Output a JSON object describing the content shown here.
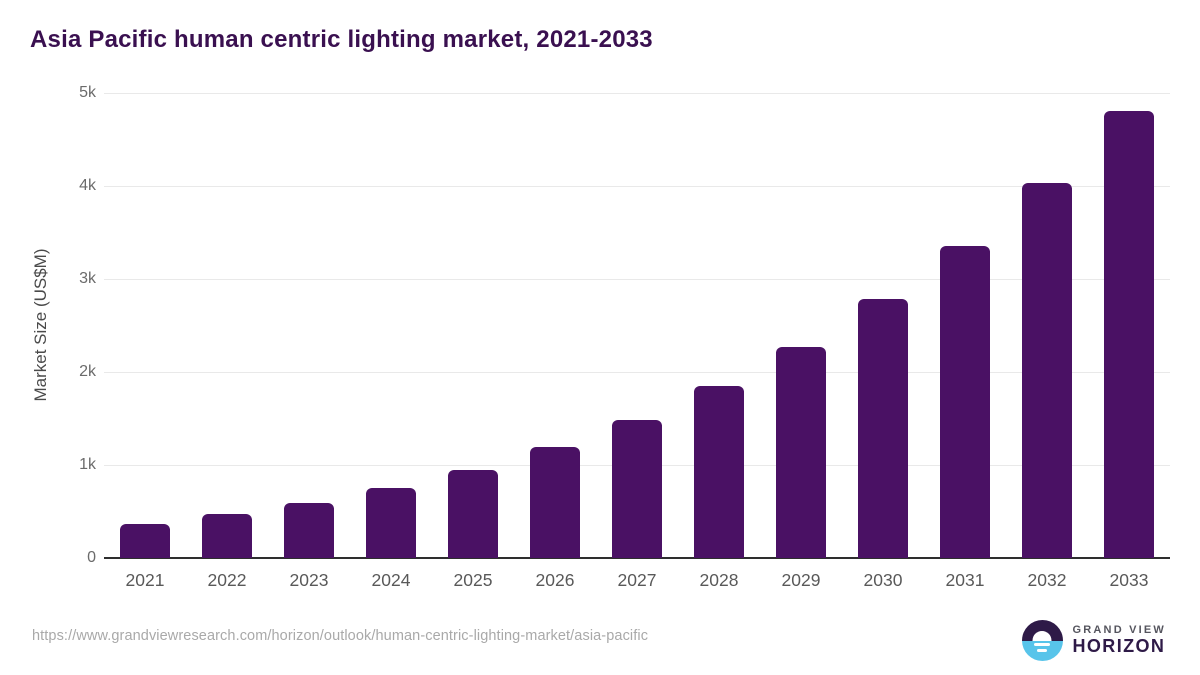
{
  "page": {
    "title": "Asia Pacific human centric lighting market, 2021-2033"
  },
  "y_axis": {
    "label": "Market Size (US$M)"
  },
  "footer": {
    "source_url": "https://www.grandviewresearch.com/horizon/outlook/human-centric-lighting-market/asia-pacific",
    "logo": {
      "line1": "GRAND VIEW",
      "line2": "HORIZON"
    }
  },
  "colors": {
    "bar": "#4a1164",
    "title": "#3a1050",
    "logo_purple": "#2e1a47",
    "logo_blue": "#58c4ea",
    "gridline": "#e9e9e9",
    "axis_line": "#2e2e2e"
  },
  "chart_data": {
    "type": "bar",
    "title": "Asia Pacific human centric lighting market, 2021-2033",
    "categories": [
      "2021",
      "2022",
      "2023",
      "2024",
      "2025",
      "2026",
      "2027",
      "2028",
      "2029",
      "2030",
      "2031",
      "2032",
      "2033"
    ],
    "values": [
      365,
      473,
      592,
      753,
      946,
      1194,
      1480,
      1849,
      2269,
      2785,
      3355,
      4032,
      4806
    ],
    "xlabel": "",
    "ylabel": "Market Size (US$M)",
    "ylim": [
      0,
      5000
    ],
    "yticks": [
      0,
      1000,
      2000,
      3000,
      4000,
      5000
    ],
    "ytick_labels": [
      "0",
      "1k",
      "2k",
      "3k",
      "4k",
      "5k"
    ],
    "grid": true,
    "legend": false,
    "bar_color": "#4a1164"
  }
}
